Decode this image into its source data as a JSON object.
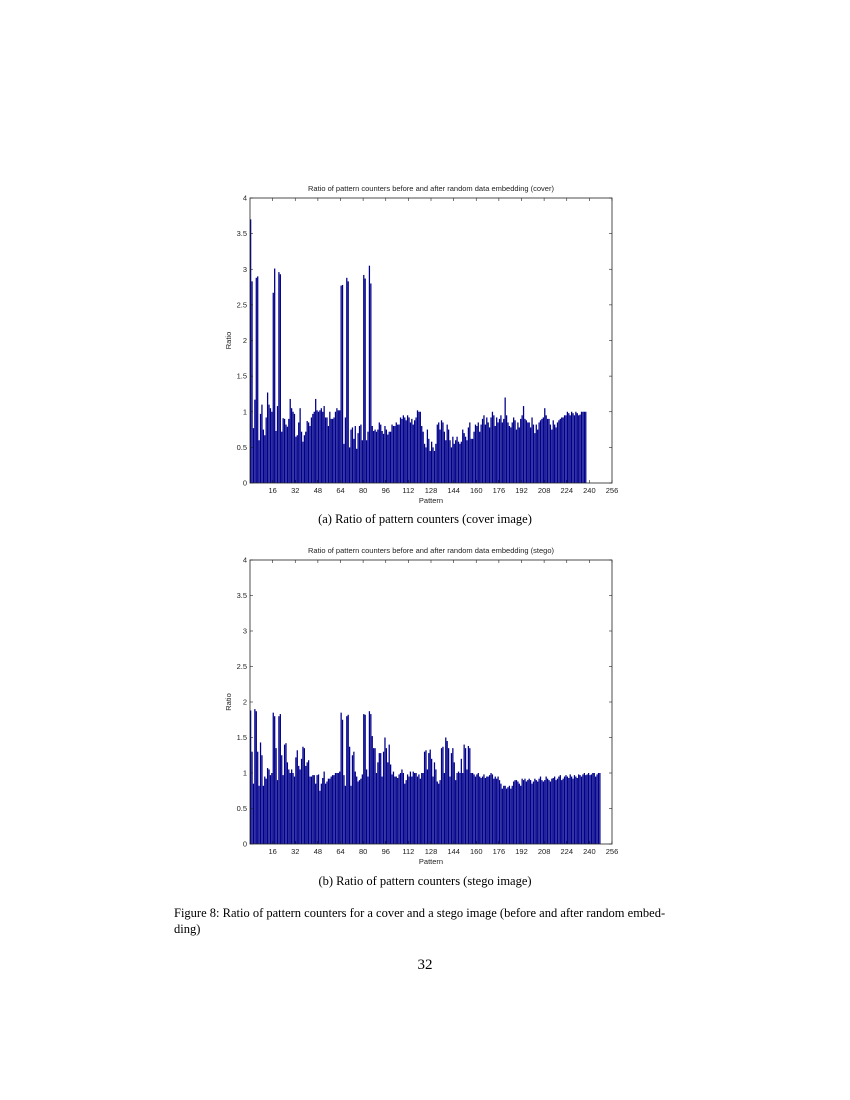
{
  "figure": {
    "subcaption_a": "(a) Ratio of pattern counters (cover image)",
    "subcaption_b": "(b) Ratio of pattern counters (stego image)",
    "caption_line1": "Figure 8: Ratio of pattern counters for a cover and a stego image (before and after random embed-",
    "caption_line2": "ding)",
    "page_number": "32",
    "bar_color": "#00008B"
  },
  "chart_data": [
    {
      "type": "bar",
      "title": "Ratio of pattern counters before and after random data embedding (cover)",
      "xlabel": "Pattern",
      "ylabel": "Ratio",
      "xlim": [
        0,
        256
      ],
      "ylim": [
        0,
        4
      ],
      "xticks": [
        16,
        32,
        48,
        64,
        80,
        96,
        112,
        128,
        144,
        160,
        176,
        192,
        208,
        224,
        240,
        256
      ],
      "yticks": [
        0,
        0.5,
        1,
        1.5,
        2,
        2.5,
        3,
        3.5,
        4
      ],
      "ytick_labels": [
        "0",
        "0.5",
        "1",
        "1.5",
        "2",
        "2.5",
        "3",
        "3.5",
        "4"
      ],
      "grid": false,
      "legend": null,
      "x_start": 1,
      "values": [
        3.7,
        2.83,
        0.77,
        1.17,
        2.88,
        2.9,
        0.6,
        0.97,
        1.1,
        0.75,
        0.67,
        0.92,
        1.27,
        1.1,
        1.05,
        1.0,
        2.67,
        3.01,
        0.73,
        1.08,
        2.96,
        2.93,
        0.72,
        0.91,
        0.9,
        0.82,
        0.79,
        0.9,
        1.18,
        1.05,
        1.0,
        0.97,
        0.65,
        0.67,
        0.85,
        1.05,
        0.72,
        0.58,
        0.67,
        0.72,
        0.87,
        0.85,
        0.8,
        0.92,
        0.97,
        1.0,
        1.18,
        1.02,
        1.0,
        1.02,
        1.05,
        1.0,
        1.08,
        0.92,
        0.92,
        0.8,
        1.0,
        0.9,
        0.9,
        0.92,
        1.0,
        1.05,
        1.02,
        1.02,
        2.77,
        2.78,
        0.55,
        0.92,
        2.88,
        2.83,
        0.5,
        0.75,
        0.78,
        0.62,
        0.8,
        0.48,
        0.7,
        0.8,
        0.82,
        0.6,
        2.92,
        2.87,
        0.6,
        0.72,
        3.05,
        2.8,
        0.8,
        0.73,
        0.75,
        0.72,
        0.75,
        0.85,
        0.82,
        0.73,
        0.69,
        0.8,
        0.75,
        0.68,
        0.72,
        0.72,
        0.82,
        0.8,
        0.8,
        0.85,
        0.82,
        0.82,
        0.92,
        0.9,
        0.95,
        0.92,
        0.88,
        0.95,
        0.92,
        0.85,
        0.9,
        0.82,
        0.88,
        0.92,
        1.02,
        1.0,
        1.0,
        0.8,
        0.72,
        0.55,
        0.5,
        0.75,
        0.62,
        0.45,
        0.58,
        0.5,
        0.45,
        0.55,
        0.82,
        0.85,
        0.75,
        0.88,
        0.85,
        0.72,
        0.6,
        0.82,
        0.75,
        0.6,
        0.5,
        0.65,
        0.55,
        0.6,
        0.65,
        0.58,
        0.55,
        0.58,
        0.75,
        0.7,
        0.65,
        0.6,
        0.78,
        0.85,
        0.62,
        0.62,
        0.72,
        0.82,
        0.8,
        0.85,
        0.72,
        0.82,
        0.9,
        0.95,
        0.82,
        0.92,
        0.85,
        0.78,
        0.92,
        1.0,
        0.95,
        0.8,
        0.92,
        0.85,
        0.9,
        0.95,
        0.85,
        0.9,
        1.2,
        0.95,
        0.85,
        0.8,
        0.78,
        0.85,
        0.92,
        0.88,
        0.75,
        0.85,
        0.78,
        0.9,
        0.95,
        1.08,
        0.9,
        0.88,
        0.85,
        0.85,
        0.78,
        0.92,
        0.82,
        0.7,
        0.82,
        0.75,
        0.85,
        0.88,
        0.9,
        0.92,
        1.05,
        0.95,
        0.9,
        0.9,
        0.82,
        0.75,
        0.88,
        0.82,
        0.78,
        0.85,
        0.88,
        0.9,
        0.92,
        0.92,
        0.95,
        0.95,
        1.0,
        0.98,
        0.95,
        1.0,
        0.98,
        0.95,
        1.0,
        0.98,
        0.95,
        0.96,
        1.0,
        1.0,
        1.0,
        1.0
      ]
    },
    {
      "type": "bar",
      "title": "Ratio of pattern counters before and after random data embedding (stego)",
      "xlabel": "Pattern",
      "ylabel": "Ratio",
      "xlim": [
        0,
        256
      ],
      "ylim": [
        0,
        4
      ],
      "xticks": [
        16,
        32,
        48,
        64,
        80,
        96,
        112,
        128,
        144,
        160,
        176,
        192,
        208,
        224,
        240,
        256
      ],
      "yticks": [
        0,
        0.5,
        1,
        1.5,
        2,
        2.5,
        3,
        3.5,
        4
      ],
      "ytick_labels": [
        "0",
        "0.5",
        "1",
        "1.5",
        "2",
        "2.5",
        "3",
        "3.5",
        "4"
      ],
      "grid": false,
      "legend": null,
      "x_start": 1,
      "values": [
        1.88,
        1.3,
        0.85,
        1.9,
        1.87,
        1.3,
        0.82,
        1.43,
        1.25,
        0.82,
        0.95,
        0.92,
        1.07,
        1.05,
        0.97,
        1.0,
        1.85,
        1.8,
        1.35,
        0.9,
        1.8,
        1.83,
        1.25,
        0.97,
        1.4,
        1.42,
        1.15,
        1.05,
        1.0,
        1.05,
        1.0,
        0.95,
        1.22,
        1.32,
        1.1,
        1.05,
        1.2,
        1.37,
        1.35,
        1.1,
        1.15,
        1.18,
        0.95,
        0.95,
        0.97,
        0.97,
        0.85,
        0.97,
        0.98,
        0.75,
        0.85,
        0.93,
        1.02,
        0.85,
        0.88,
        0.92,
        0.92,
        0.95,
        0.97,
        0.97,
        1.0,
        1.0,
        1.0,
        1.02,
        1.85,
        1.75,
        0.97,
        0.82,
        1.8,
        1.82,
        1.37,
        0.82,
        1.25,
        1.3,
        1.02,
        0.95,
        0.88,
        0.9,
        0.92,
        0.98,
        1.83,
        1.82,
        1.05,
        0.95,
        1.87,
        1.83,
        1.52,
        1.35,
        1.35,
        1.0,
        1.15,
        1.28,
        1.28,
        0.95,
        1.3,
        1.5,
        1.35,
        1.15,
        1.4,
        1.12,
        0.98,
        1.02,
        0.95,
        0.95,
        0.93,
        0.98,
        1.0,
        1.05,
        1.0,
        0.85,
        0.9,
        0.98,
        0.95,
        1.02,
        0.95,
        1.02,
        1.0,
        1.0,
        0.95,
        0.98,
        0.92,
        1.0,
        1.0,
        1.3,
        1.32,
        1.05,
        1.28,
        1.33,
        1.2,
        0.95,
        1.15,
        1.05,
        0.88,
        0.85,
        0.9,
        1.35,
        1.37,
        1.0,
        1.5,
        1.45,
        1.35,
        0.95,
        1.28,
        1.35,
        1.15,
        0.9,
        1.0,
        1.02,
        1.0,
        1.2,
        1.0,
        1.4,
        1.35,
        1.05,
        1.38,
        1.35,
        1.0,
        1.0,
        0.98,
        0.95,
        0.98,
        1.0,
        0.95,
        0.93,
        0.95,
        0.98,
        0.93,
        0.95,
        0.95,
        0.97,
        1.0,
        0.98,
        0.92,
        0.95,
        0.92,
        0.95,
        0.9,
        0.85,
        0.78,
        0.82,
        0.82,
        0.78,
        0.8,
        0.82,
        0.78,
        0.82,
        0.88,
        0.9,
        0.9,
        0.88,
        0.85,
        0.82,
        0.92,
        0.9,
        0.92,
        0.88,
        0.9,
        0.92,
        0.9,
        0.85,
        0.88,
        0.92,
        0.9,
        0.88,
        0.92,
        0.95,
        0.9,
        0.88,
        0.9,
        0.95,
        0.92,
        0.9,
        0.88,
        0.92,
        0.93,
        0.95,
        0.9,
        0.92,
        0.95,
        0.97,
        0.9,
        0.92,
        0.95,
        0.97,
        0.95,
        0.93,
        0.98,
        0.95,
        0.92,
        0.97,
        0.95,
        0.93,
        0.98,
        0.97,
        0.95,
        0.98,
        1.0,
        0.97,
        0.98,
        1.0,
        0.97,
        0.98,
        1.0,
        1.0,
        0.95,
        0.98,
        1.0,
        1.0
      ]
    }
  ]
}
